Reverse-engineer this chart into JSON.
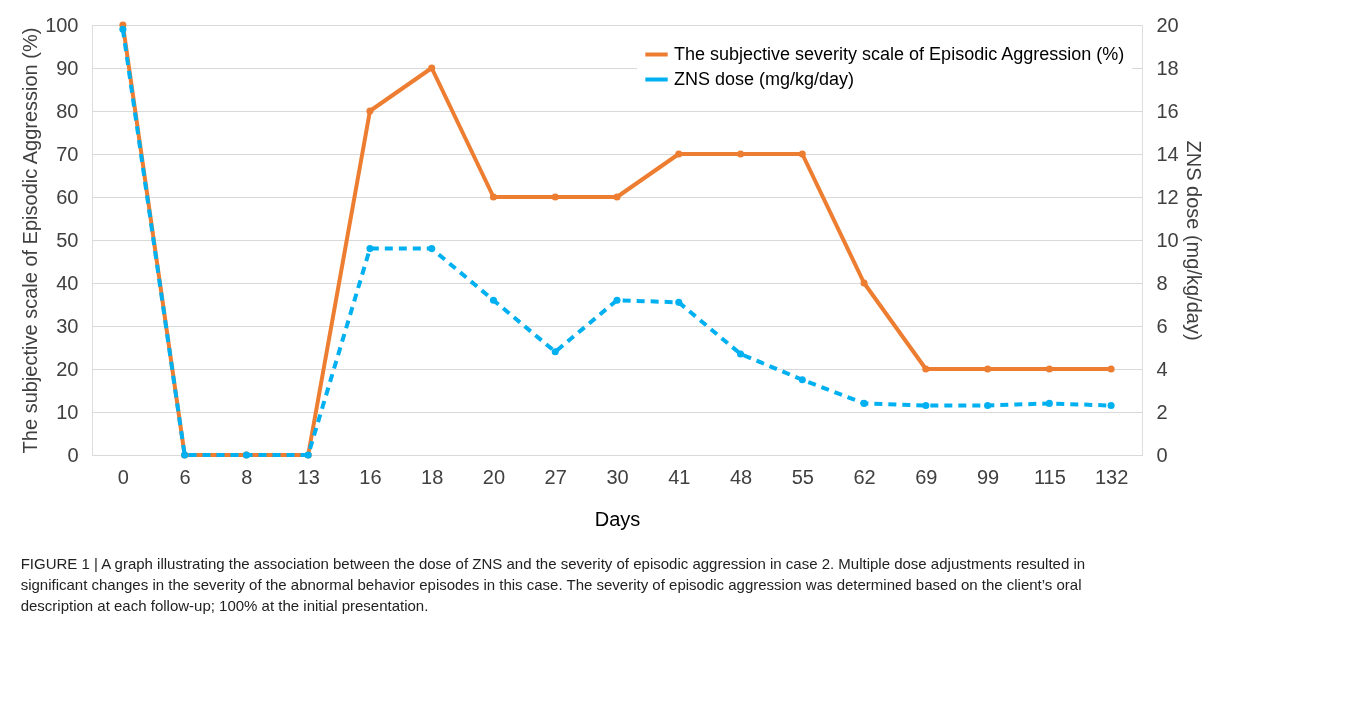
{
  "chart_data": {
    "type": "line",
    "categories": [
      "0",
      "6",
      "8",
      "13",
      "16",
      "18",
      "20",
      "27",
      "30",
      "41",
      "48",
      "55",
      "62",
      "69",
      "99",
      "115",
      "132"
    ],
    "xlabel": "Days",
    "ylabel": "The subjective scale of Episodic Aggression (%)",
    "y2label": "ZNS dose (mg/kg/day)",
    "ylim": [
      0,
      100
    ],
    "yticks": [
      0,
      10,
      20,
      30,
      40,
      50,
      60,
      70,
      80,
      90,
      100
    ],
    "y2lim": [
      0,
      20
    ],
    "y2ticks": [
      0,
      2,
      4,
      6,
      8,
      10,
      12,
      14,
      16,
      18,
      20
    ],
    "series": [
      {
        "name": "The subjective severity scale of Episodic Aggression (%)",
        "color": "#ed7d31",
        "line_style": "solid",
        "values": [
          100,
          0,
          0,
          0,
          80,
          90,
          60,
          60,
          60,
          70,
          70,
          70,
          40,
          20,
          20,
          20,
          20
        ]
      },
      {
        "name": "ZNS dose (mg/kg/day)",
        "color": "#00b0f0",
        "line_style": "dashed",
        "axis": "y2",
        "values": [
          19.8,
          0,
          0,
          0,
          9.6,
          9.6,
          7.2,
          4.8,
          7.2,
          7.1,
          4.7,
          3.5,
          2.4,
          2.3,
          2.3,
          2.4,
          2.3
        ]
      }
    ],
    "marker": "circle",
    "grid": "y",
    "legend": "top right",
    "annotations": [
      "FIGURE 1 | A graph illustrating the association between the dose of ZNS and the severity of episodic aggression in case 2. Multiple dose adjustments resulted in significant changes in the severity of the abnormal behavior episodes in this case. The severity of episodic aggression was determined based on the client’s oral description at each follow-up; 100% at the initial presentation."
    ]
  }
}
